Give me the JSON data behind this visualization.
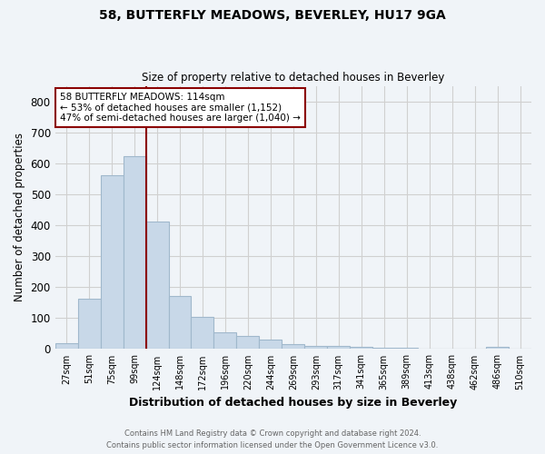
{
  "title": "58, BUTTERFLY MEADOWS, BEVERLEY, HU17 9GA",
  "subtitle": "Size of property relative to detached houses in Beverley",
  "xlabel": "Distribution of detached houses by size in Beverley",
  "ylabel": "Number of detached properties",
  "footnote1": "Contains HM Land Registry data © Crown copyright and database right 2024.",
  "footnote2": "Contains public sector information licensed under the Open Government Licence v3.0.",
  "bin_labels": [
    "27sqm",
    "51sqm",
    "75sqm",
    "99sqm",
    "124sqm",
    "148sqm",
    "172sqm",
    "196sqm",
    "220sqm",
    "244sqm",
    "269sqm",
    "293sqm",
    "317sqm",
    "341sqm",
    "365sqm",
    "389sqm",
    "413sqm",
    "438sqm",
    "462sqm",
    "486sqm",
    "510sqm"
  ],
  "bar_heights": [
    20,
    163,
    562,
    622,
    412,
    170,
    105,
    54,
    43,
    32,
    15,
    10,
    10,
    7,
    5,
    5,
    0,
    0,
    0,
    7,
    0
  ],
  "bar_color": "#c8d8e8",
  "bar_edgecolor": "#a0b8cc",
  "vline_x": 3.5,
  "vline_color": "#8b0000",
  "annotation_text": "58 BUTTERFLY MEADOWS: 114sqm\n← 53% of detached houses are smaller (1,152)\n47% of semi-detached houses are larger (1,040) →",
  "annotation_box_edgecolor": "#8b0000",
  "annotation_box_facecolor": "#ffffff",
  "ylim": [
    0,
    850
  ],
  "yticks": [
    0,
    100,
    200,
    300,
    400,
    500,
    600,
    700,
    800
  ],
  "grid_color": "#d0d0d0",
  "background_color": "#f0f4f8"
}
